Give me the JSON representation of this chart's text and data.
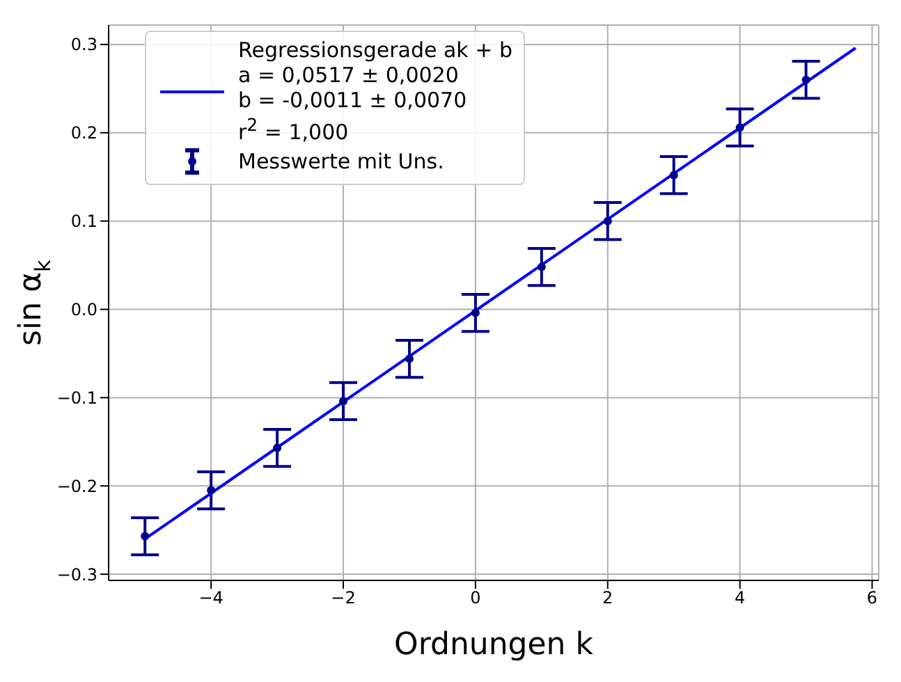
{
  "chart_data": {
    "type": "scatter",
    "xlabel": "Ordnungen k",
    "ylabel": "sin α$_{k}$",
    "xlim": [
      -5.55,
      6.1
    ],
    "xticks": [
      {
        "value": -4,
        "label": "−4"
      },
      {
        "value": -2,
        "label": "−2"
      },
      0,
      2,
      4,
      6
    ],
    "ylim": [
      -0.307,
      0.322
    ],
    "yticks": [
      {
        "value": -0.3,
        "label": "−0.3"
      },
      {
        "value": -0.2,
        "label": "−0.2"
      },
      {
        "value": -0.1,
        "label": "−0.1"
      },
      {
        "value": 0,
        "label": "0.0"
      },
      0.1,
      0.2,
      0.3
    ],
    "grid": true,
    "legend": "top left",
    "marker": "circle",
    "line_style": "solid",
    "series": [
      {
        "name": "Regressionsgerade ak + b\na = 0,0517 ± 0,0020\nb = -0,0011 ± 0,0070\nr$^{2}$ = 1,000",
        "type": "line",
        "marker": "none",
        "color": "#0000ff",
        "x": [
          -5,
          5.75
        ],
        "values": [
          -0.26,
          0.296
        ]
      },
      {
        "name": "Messwerte mit Uns.",
        "color": "#00008b",
        "x": [
          -5,
          -4,
          -3,
          -2,
          -1,
          0,
          1,
          2,
          3,
          4,
          5
        ],
        "values": [
          -0.257,
          -0.205,
          -0.157,
          -0.104,
          -0.056,
          -0.004,
          0.048,
          0.1,
          0.152,
          0.206,
          0.26
        ],
        "errors": [
          0.021,
          0.021,
          0.021,
          0.021,
          0.021,
          0.021,
          0.021,
          0.021,
          0.021,
          0.021,
          0.021
        ]
      }
    ]
  }
}
